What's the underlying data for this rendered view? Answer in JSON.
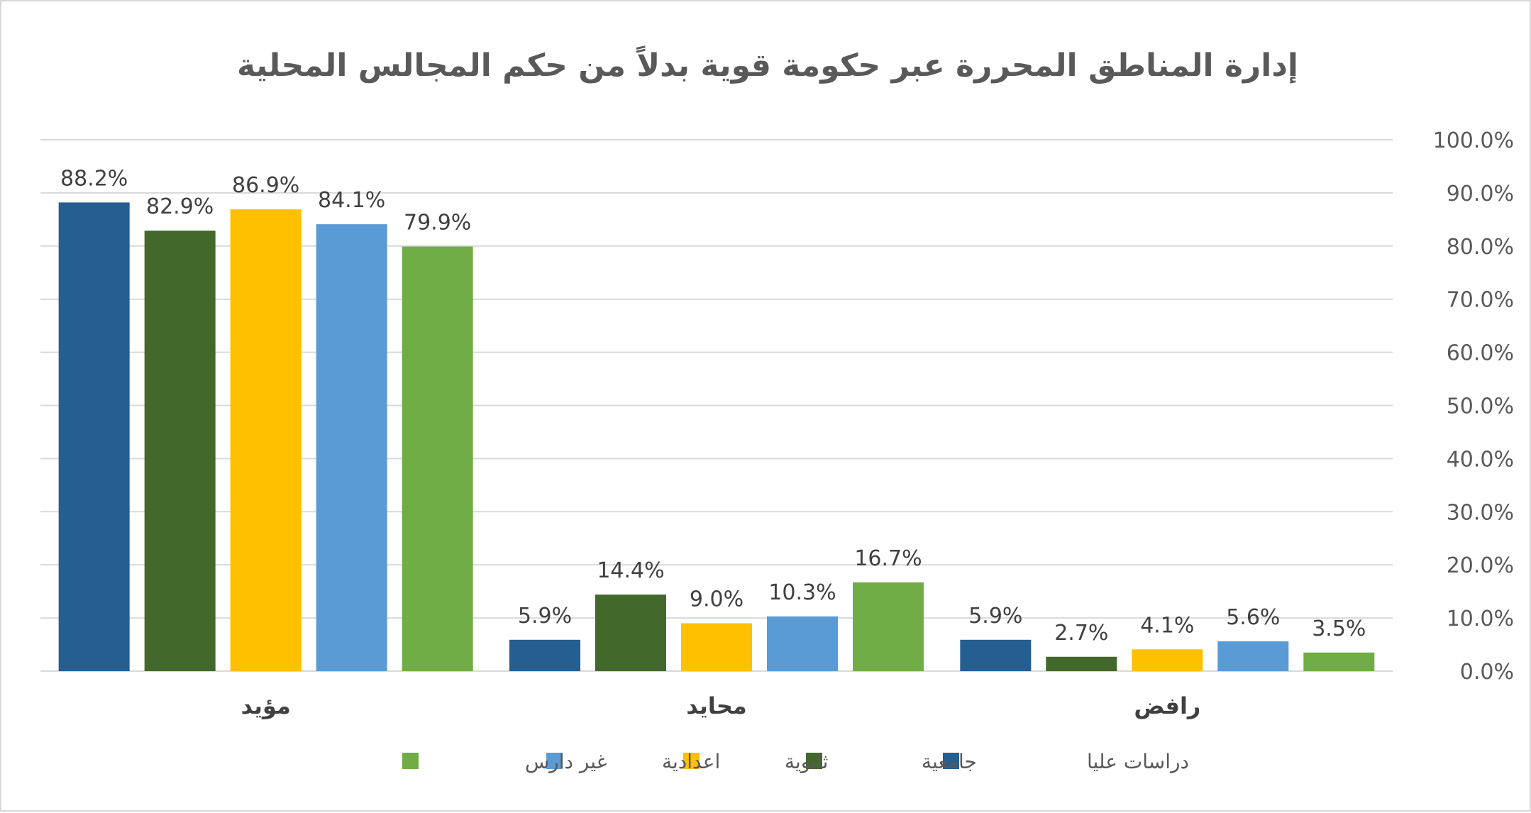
{
  "chart_data": {
    "type": "bar",
    "title": "إدارة المناطق المحررة عبر حكومة قوية بدلاً من حكم المجالس المحلية",
    "categories": [
      "مؤيد",
      "محايد",
      "رافض"
    ],
    "series": [
      {
        "name": "دراسات عليا",
        "color": "#255e91",
        "values": [
          88.2,
          5.9,
          5.9
        ]
      },
      {
        "name": "جامعية",
        "color": "#43682b",
        "values": [
          82.9,
          14.4,
          2.7
        ]
      },
      {
        "name": "ثانوية",
        "color": "#ffc000",
        "values": [
          86.9,
          9.0,
          4.1
        ]
      },
      {
        "name": "اعدادية",
        "color": "#5b9bd5",
        "values": [
          84.1,
          10.3,
          5.6
        ]
      },
      {
        "name": "غير دارس",
        "color": "#70ad47",
        "values": [
          79.9,
          16.7,
          3.5
        ]
      }
    ],
    "yticks": [
      "0.0%",
      "10.0%",
      "20.0%",
      "30.0%",
      "40.0%",
      "50.0%",
      "60.0%",
      "70.0%",
      "80.0%",
      "90.0%",
      "100.0%"
    ],
    "ylim": [
      0,
      100
    ],
    "y_axis_side": "right",
    "grid": true,
    "legend": "bottom",
    "xlabel": "",
    "ylabel": ""
  }
}
